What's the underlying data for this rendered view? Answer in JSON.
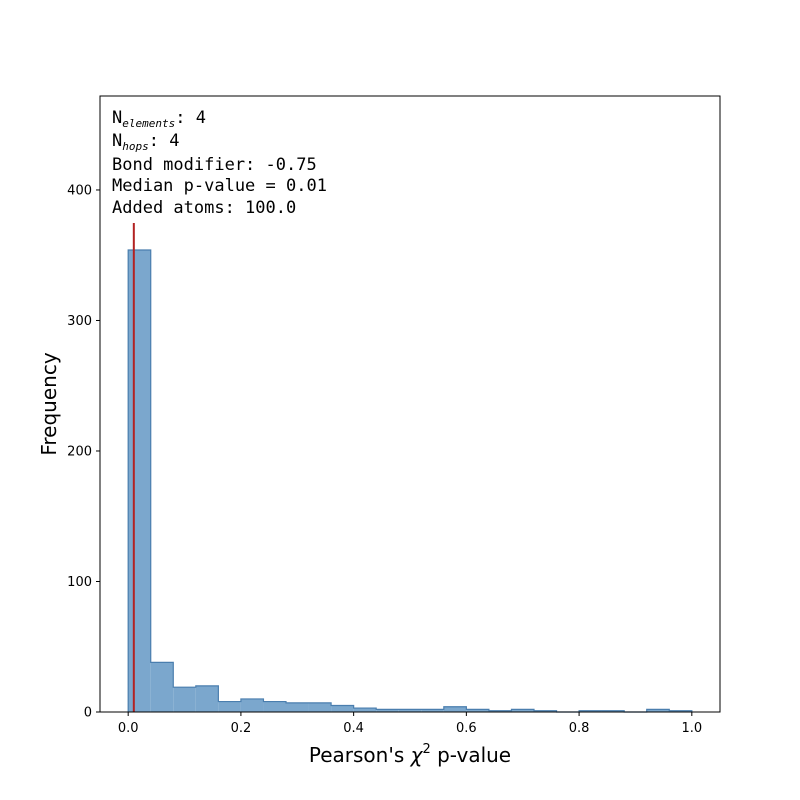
{
  "chart_data": {
    "type": "histogram",
    "xlabel_prefix": "Pearson's ",
    "xlabel_symbol": "χ",
    "xlabel_sup": "2",
    "xlabel_suffix": " p-value",
    "ylabel": "Frequency",
    "xlim": [
      -0.05,
      1.05
    ],
    "ylim": [
      0,
      472
    ],
    "x_ticks": [
      0.0,
      0.2,
      0.4,
      0.6,
      0.8,
      1.0
    ],
    "x_tick_labels": [
      "0.0",
      "0.2",
      "0.4",
      "0.6",
      "0.8",
      "1.0"
    ],
    "y_ticks": [
      0,
      100,
      200,
      300,
      400
    ],
    "y_tick_labels": [
      "0",
      "100",
      "200",
      "300",
      "400"
    ],
    "bin_edges": [
      0.0,
      0.04,
      0.08,
      0.12,
      0.16,
      0.2,
      0.24,
      0.28,
      0.32,
      0.36,
      0.4,
      0.44,
      0.48,
      0.52,
      0.56,
      0.6,
      0.64,
      0.68,
      0.72,
      0.76,
      0.8,
      0.84,
      0.88,
      0.92,
      0.96,
      1.0
    ],
    "counts": [
      354,
      38,
      19,
      20,
      8,
      10,
      8,
      7,
      7,
      5,
      3,
      2,
      2,
      2,
      4,
      2,
      1,
      2,
      1,
      0,
      1,
      1,
      0,
      2,
      1
    ],
    "median_line": {
      "value": 0.01,
      "color": "#b22222"
    },
    "bar_fill": "#7ba7cd",
    "bar_edge": "#4a7eae",
    "annotations": [
      {
        "text": "N",
        "sub": "elements",
        "after": ": 4"
      },
      {
        "text": "N",
        "sub": "hops",
        "after": ": 4"
      },
      {
        "text": "Bond modifier: -0.75"
      },
      {
        "text": "Median p-value = 0.01"
      },
      {
        "text": "Added atoms: 100.0"
      }
    ]
  }
}
